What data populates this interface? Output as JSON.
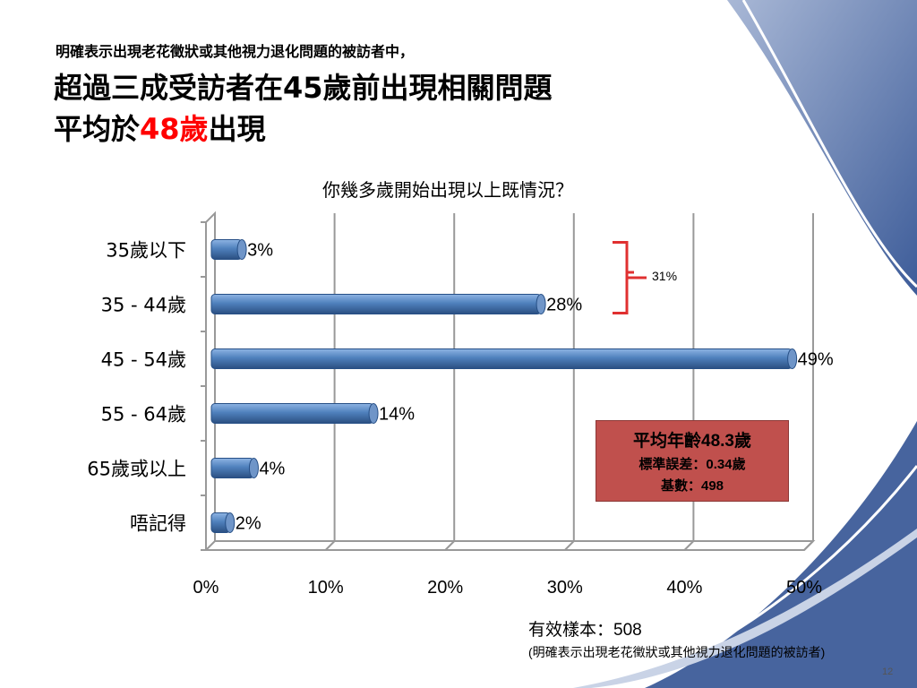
{
  "slide": {
    "sub_heading": "明確表示出現老花徵狀或其他視力退化問題的被訪者中，",
    "heading_line1": "超過三成受訪者在45歲前出現相關問題",
    "heading_line2_prefix": "平均於",
    "heading_line2_accent": "48歲",
    "heading_line2_suffix": "出現",
    "accent_color": "#ff0000",
    "page_number": "12"
  },
  "chart_data": {
    "type": "bar",
    "orientation": "horizontal",
    "title": "你幾多歲開始出現以上既情況？",
    "categories": [
      "35歲以下",
      "35 - 44歲",
      "45 - 54歲",
      "55 - 64歲",
      "65歲或以上",
      "唔記得"
    ],
    "values": [
      3,
      28,
      49,
      14,
      4,
      2
    ],
    "value_labels": [
      "3%",
      "28%",
      "49%",
      "14%",
      "4%",
      "2%"
    ],
    "xlim": [
      0,
      50
    ],
    "xticks": [
      "0%",
      "10%",
      "20%",
      "30%",
      "40%",
      "50%"
    ],
    "bar_color": "#4f81bd",
    "grid": true,
    "bracket": {
      "label": "31%",
      "color": "#e03030"
    }
  },
  "stats": {
    "line1": "平均年齡48.3歲",
    "line2": "標準誤差：0.34歲",
    "line3": "基數：498",
    "box_color": "#c0504d"
  },
  "footer": {
    "sample": "有效樣本：508",
    "note": "(明確表示出現老花徵狀或其他視力退化問題的被訪者)"
  }
}
